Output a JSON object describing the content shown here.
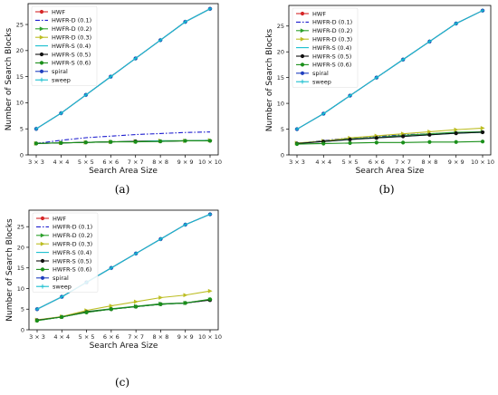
{
  "chart_data": [
    {
      "panel": "(a)",
      "type": "line",
      "xlabel": "Search Area Size",
      "ylabel": "Number of Search Blocks",
      "x": [
        "3 × 3",
        "4 × 4",
        "5 × 5",
        "6 × 6",
        "7 × 7",
        "8 × 8",
        "9 × 9",
        "10 × 10"
      ],
      "ylim": [
        0,
        29
      ],
      "yticks": [
        0,
        5,
        10,
        15,
        20,
        25
      ],
      "grid": false,
      "legend_position": "top-left",
      "series": [
        {
          "name": "HWF",
          "color": "#d62728",
          "style": "solid",
          "marker": "circle",
          "values": [
            5,
            8,
            11.5,
            15,
            18.5,
            22,
            25.5,
            28
          ]
        },
        {
          "name": "HWFR-D (0.1)",
          "color": "#1f1fcf",
          "style": "dashdot",
          "marker": "none",
          "values": [
            2.2,
            2.8,
            3.3,
            3.6,
            3.9,
            4.1,
            4.3,
            4.4
          ]
        },
        {
          "name": "HWFR-D (0.2)",
          "color": "#2ca02c",
          "style": "solid",
          "marker": "triangle-right",
          "values": [
            2.2,
            2.3,
            2.4,
            2.5,
            2.6,
            2.7,
            2.7,
            2.8
          ]
        },
        {
          "name": "HWFR-D (0.3)",
          "color": "#bcbd22",
          "style": "solid",
          "marker": "triangle-right",
          "values": [
            2.2,
            2.3,
            2.4,
            2.5,
            2.6,
            2.7,
            2.7,
            2.8
          ]
        },
        {
          "name": "HWFR-S (0.4)",
          "color": "#17becf",
          "style": "solid",
          "marker": "none",
          "values": [
            2.2,
            2.3,
            2.4,
            2.5,
            2.6,
            2.7,
            2.7,
            2.8
          ]
        },
        {
          "name": "HWFR-S (0.5)",
          "color": "#111111",
          "style": "solid",
          "marker": "circle",
          "values": [
            2.2,
            2.3,
            2.4,
            2.5,
            2.6,
            2.6,
            2.7,
            2.7
          ]
        },
        {
          "name": "HWFR-S (0.6)",
          "color": "#1a8f1a",
          "style": "solid",
          "marker": "circle",
          "values": [
            2.2,
            2.3,
            2.4,
            2.5,
            2.5,
            2.6,
            2.7,
            2.7
          ]
        },
        {
          "name": "spiral",
          "color": "#1f3fbf",
          "style": "solid",
          "marker": "circle",
          "values": [
            5,
            8,
            11.5,
            15,
            18.5,
            22,
            25.5,
            28
          ]
        },
        {
          "name": "sweep",
          "color": "#17becf",
          "style": "solid",
          "marker": "plus",
          "values": [
            5,
            8,
            11.5,
            15,
            18.5,
            22,
            25.5,
            28
          ]
        }
      ]
    },
    {
      "panel": "(b)",
      "type": "line",
      "xlabel": "Search Area Size",
      "ylabel": "Number of Search Blocks",
      "x": [
        "3 × 3",
        "4 × 4",
        "5 × 5",
        "6 × 6",
        "7 × 7",
        "8 × 8",
        "9 × 9",
        "10 × 10"
      ],
      "ylim": [
        0,
        29
      ],
      "yticks": [
        0,
        5,
        10,
        15,
        20,
        25
      ],
      "grid": false,
      "legend_position": "top-left",
      "series": [
        {
          "name": "HWF",
          "color": "#d62728",
          "style": "solid",
          "marker": "circle",
          "values": [
            5,
            8,
            11.5,
            15,
            18.5,
            22,
            25.5,
            28
          ]
        },
        {
          "name": "HWFR-D (0.1)",
          "color": "#1f1fcf",
          "style": "dashdot",
          "marker": "none",
          "values": [
            2.2,
            2.8,
            3.3,
            3.6,
            3.9,
            4.1,
            4.3,
            4.4
          ]
        },
        {
          "name": "HWFR-D (0.2)",
          "color": "#2ca02c",
          "style": "solid",
          "marker": "triangle-right",
          "values": [
            2.3,
            2.6,
            3.1,
            3.4,
            3.8,
            4.1,
            4.4,
            4.5
          ]
        },
        {
          "name": "HWFR-D (0.3)",
          "color": "#bcbd22",
          "style": "solid",
          "marker": "triangle-right",
          "values": [
            2.3,
            2.7,
            3.3,
            3.7,
            4.1,
            4.5,
            4.9,
            5.2
          ]
        },
        {
          "name": "HWFR-S (0.4)",
          "color": "#17becf",
          "style": "solid",
          "marker": "none",
          "values": [
            2.2,
            2.6,
            3.0,
            3.3,
            3.6,
            3.9,
            4.2,
            4.4
          ]
        },
        {
          "name": "HWFR-S (0.5)",
          "color": "#111111",
          "style": "solid",
          "marker": "circle",
          "values": [
            2.2,
            2.6,
            3.0,
            3.3,
            3.6,
            3.9,
            4.2,
            4.4
          ]
        },
        {
          "name": "HWFR-S (0.6)",
          "color": "#1a8f1a",
          "style": "solid",
          "marker": "circle",
          "values": [
            2.1,
            2.2,
            2.3,
            2.4,
            2.4,
            2.5,
            2.5,
            2.6
          ]
        },
        {
          "name": "spiral",
          "color": "#1f3fbf",
          "style": "solid",
          "marker": "circle",
          "values": [
            5,
            8,
            11.5,
            15,
            18.5,
            22,
            25.5,
            28
          ]
        },
        {
          "name": "sweep",
          "color": "#17becf",
          "style": "solid",
          "marker": "plus",
          "values": [
            5,
            8,
            11.5,
            15,
            18.5,
            22,
            25.5,
            28
          ]
        }
      ]
    },
    {
      "panel": "(c)",
      "type": "line",
      "xlabel": "Search Area Size",
      "ylabel": "Number of Search Blocks",
      "x": [
        "3 × 3",
        "4 × 4",
        "5 × 5",
        "6 × 6",
        "7 × 7",
        "8 × 8",
        "9 × 9",
        "10 × 10"
      ],
      "ylim": [
        0,
        29
      ],
      "yticks": [
        0,
        5,
        10,
        15,
        20,
        25
      ],
      "grid": false,
      "legend_position": "top-left",
      "series": [
        {
          "name": "HWF",
          "color": "#d62728",
          "style": "solid",
          "marker": "circle",
          "values": [
            5,
            8,
            11.5,
            15,
            18.5,
            22,
            25.5,
            28
          ]
        },
        {
          "name": "HWFR-D (0.1)",
          "color": "#1f1fcf",
          "style": "dashdot",
          "marker": "none",
          "values": [
            2.3,
            3.1,
            4.3,
            5.0,
            5.6,
            6.2,
            6.5,
            7.2
          ]
        },
        {
          "name": "HWFR-D (0.2)",
          "color": "#2ca02c",
          "style": "solid",
          "marker": "triangle-right",
          "values": [
            2.3,
            3.1,
            4.4,
            5.1,
            5.7,
            6.3,
            6.5,
            7.3
          ]
        },
        {
          "name": "HWFR-D (0.3)",
          "color": "#bcbd22",
          "style": "solid",
          "marker": "triangle-right",
          "values": [
            2.4,
            3.2,
            4.7,
            5.8,
            6.8,
            7.8,
            8.4,
            9.4
          ]
        },
        {
          "name": "HWFR-S (0.4)",
          "color": "#17becf",
          "style": "solid",
          "marker": "none",
          "values": [
            2.3,
            3.1,
            4.3,
            5.0,
            5.6,
            6.2,
            6.5,
            7.3
          ]
        },
        {
          "name": "HWFR-S (0.5)",
          "color": "#111111",
          "style": "solid",
          "marker": "circle",
          "values": [
            2.3,
            3.1,
            4.3,
            5.0,
            5.6,
            6.2,
            6.5,
            7.2
          ]
        },
        {
          "name": "HWFR-S (0.6)",
          "color": "#1a8f1a",
          "style": "solid",
          "marker": "circle",
          "values": [
            2.2,
            3.1,
            4.2,
            5.0,
            5.6,
            6.2,
            6.5,
            7.4
          ]
        },
        {
          "name": "spiral",
          "color": "#1f3fbf",
          "style": "solid",
          "marker": "circle",
          "values": [
            5,
            8,
            11.5,
            15,
            18.5,
            22,
            25.5,
            28
          ]
        },
        {
          "name": "sweep",
          "color": "#17becf",
          "style": "solid",
          "marker": "plus",
          "values": [
            5,
            8,
            11.5,
            15,
            18.5,
            22,
            25.5,
            28
          ]
        }
      ]
    }
  ]
}
